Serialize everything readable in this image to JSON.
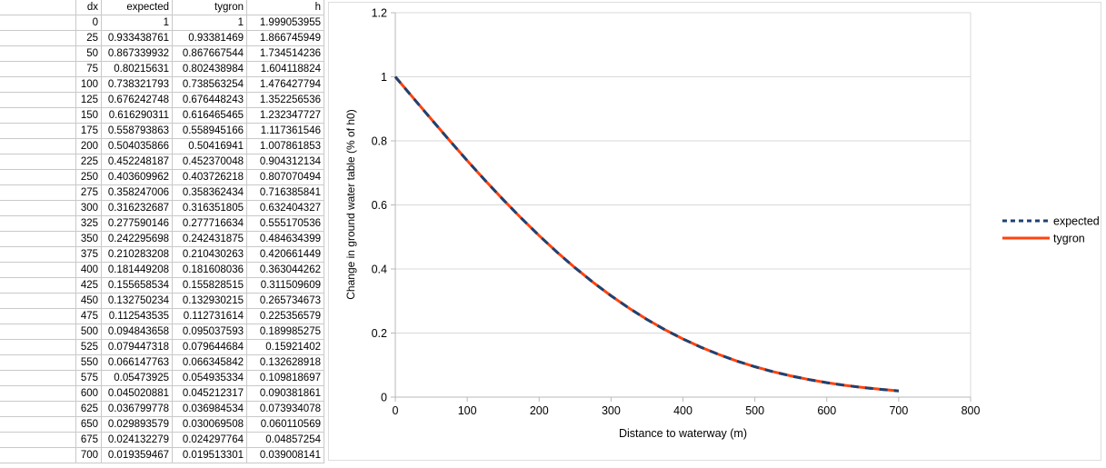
{
  "table": {
    "headers": [
      "dx",
      "expected",
      "tygron",
      "h"
    ],
    "rows": [
      [
        "0",
        "1",
        "1",
        "1.999053955"
      ],
      [
        "25",
        "0.933438761",
        "0.93381469",
        "1.866745949"
      ],
      [
        "50",
        "0.867339932",
        "0.867667544",
        "1.734514236"
      ],
      [
        "75",
        "0.80215631",
        "0.802438984",
        "1.604118824"
      ],
      [
        "100",
        "0.738321793",
        "0.738563254",
        "1.476427794"
      ],
      [
        "125",
        "0.676242748",
        "0.676448243",
        "1.352256536"
      ],
      [
        "150",
        "0.616290311",
        "0.616465465",
        "1.232347727"
      ],
      [
        "175",
        "0.558793863",
        "0.558945166",
        "1.117361546"
      ],
      [
        "200",
        "0.504035866",
        "0.50416941",
        "1.007861853"
      ],
      [
        "225",
        "0.452248187",
        "0.452370048",
        "0.904312134"
      ],
      [
        "250",
        "0.403609962",
        "0.403726218",
        "0.807070494"
      ],
      [
        "275",
        "0.358247006",
        "0.358362434",
        "0.716385841"
      ],
      [
        "300",
        "0.316232687",
        "0.316351805",
        "0.632404327"
      ],
      [
        "325",
        "0.277590146",
        "0.277716634",
        "0.555170536"
      ],
      [
        "350",
        "0.242295698",
        "0.242431875",
        "0.484634399"
      ],
      [
        "375",
        "0.210283208",
        "0.210430263",
        "0.420661449"
      ],
      [
        "400",
        "0.181449208",
        "0.181608036",
        "0.363044262"
      ],
      [
        "425",
        "0.155658534",
        "0.155828515",
        "0.311509609"
      ],
      [
        "450",
        "0.132750234",
        "0.132930215",
        "0.265734673"
      ],
      [
        "475",
        "0.112543535",
        "0.112731614",
        "0.225356579"
      ],
      [
        "500",
        "0.094843658",
        "0.095037593",
        "0.189985275"
      ],
      [
        "525",
        "0.079447318",
        "0.079644684",
        "0.15921402"
      ],
      [
        "550",
        "0.066147763",
        "0.066345842",
        "0.132628918"
      ],
      [
        "575",
        "0.05473925",
        "0.054935334",
        "0.109818697"
      ],
      [
        "600",
        "0.045020881",
        "0.045212317",
        "0.090381861"
      ],
      [
        "625",
        "0.036799778",
        "0.036984534",
        "0.073934078"
      ],
      [
        "650",
        "0.029893579",
        "0.030069508",
        "0.060110569"
      ],
      [
        "675",
        "0.024132279",
        "0.024297764",
        "0.04857254"
      ],
      [
        "700",
        "0.019359467",
        "0.019513301",
        "0.039008141"
      ]
    ]
  },
  "chart_data": {
    "type": "line",
    "x": [
      0,
      25,
      50,
      75,
      100,
      125,
      150,
      175,
      200,
      225,
      250,
      275,
      300,
      325,
      350,
      375,
      400,
      425,
      450,
      475,
      500,
      525,
      550,
      575,
      600,
      625,
      650,
      675,
      700
    ],
    "series": [
      {
        "name": "expected",
        "color": "#1e4272",
        "style": "dashed",
        "values": [
          1,
          0.933438761,
          0.867339932,
          0.80215631,
          0.738321793,
          0.676242748,
          0.616290311,
          0.558793863,
          0.504035866,
          0.452248187,
          0.403609962,
          0.358247006,
          0.316232687,
          0.277590146,
          0.242295698,
          0.210283208,
          0.181449208,
          0.155658534,
          0.132750234,
          0.112543535,
          0.094843658,
          0.079447318,
          0.066147763,
          0.05473925,
          0.045020881,
          0.036799778,
          0.029893579,
          0.024132279,
          0.019359467
        ]
      },
      {
        "name": "tygron",
        "color": "#ff420e",
        "style": "solid",
        "values": [
          1,
          0.93381469,
          0.867667544,
          0.802438984,
          0.738563254,
          0.676448243,
          0.616465465,
          0.558945166,
          0.50416941,
          0.452370048,
          0.403726218,
          0.358362434,
          0.316351805,
          0.277716634,
          0.242431875,
          0.210430263,
          0.181608036,
          0.155828515,
          0.132930215,
          0.112731614,
          0.095037593,
          0.079644684,
          0.066345842,
          0.054935334,
          0.045212317,
          0.036984534,
          0.030069508,
          0.024297764,
          0.019513301
        ]
      }
    ],
    "title": "",
    "xlabel": "Distance to waterway (m)",
    "ylabel": "Change in ground water table (% of h0)",
    "xlim": [
      0,
      800
    ],
    "ylim": [
      0,
      1.2
    ],
    "xticks": [
      0,
      100,
      200,
      300,
      400,
      500,
      600,
      700,
      800
    ],
    "yticks": [
      0,
      0.2,
      0.4,
      0.6,
      0.8,
      1,
      1.2
    ],
    "grid": "horizontal",
    "legend_position": "right",
    "legend": [
      "expected",
      "tygron"
    ]
  },
  "colors": {
    "grid_table": "#c9c9c9",
    "grid_chart": "#d9d9d9",
    "axis": "#b9b9b9",
    "frame": "#dedede",
    "expected": "#1e4272",
    "tygron": "#ff420e"
  }
}
